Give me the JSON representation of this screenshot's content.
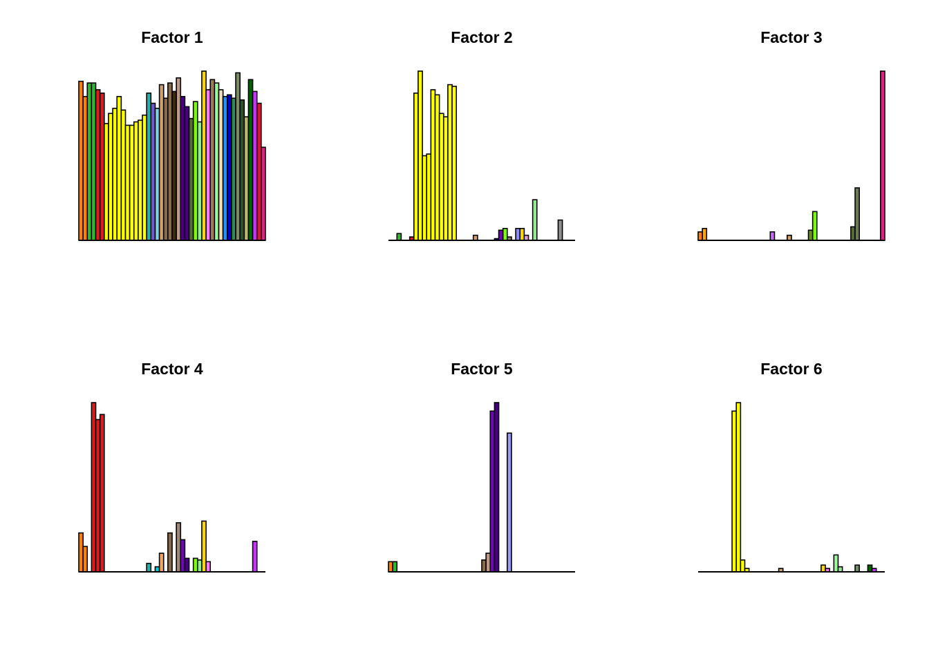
{
  "chart_data": [
    {
      "type": "bar",
      "title": "Factor 1",
      "xlabel": "",
      "ylabel": "",
      "axes": "none",
      "grid": false,
      "legend": "none",
      "ylim": [
        0,
        1
      ],
      "values": [
        0.94,
        0.85,
        0.93,
        0.93,
        0.89,
        0.87,
        0.69,
        0.75,
        0.78,
        0.85,
        0.77,
        0.68,
        0.68,
        0.7,
        0.71,
        0.74,
        0.87,
        0.81,
        0.78,
        0.92,
        0.84,
        0.93,
        0.88,
        0.96,
        0.85,
        0.79,
        0.72,
        0.82,
        0.7,
        1.0,
        0.89,
        0.95,
        0.93,
        0.89,
        0.85,
        0.86,
        0.84,
        0.99,
        0.83,
        0.73,
        0.95,
        0.88,
        0.81,
        0.55
      ],
      "colors": [
        "#FF7F00",
        "#FF7F00",
        "#2EB82E",
        "#2EB82E",
        "#E31A1C",
        "#E31A1C",
        "#FFFF00",
        "#FFFF00",
        "#FFFF00",
        "#FFFF00",
        "#FFFF00",
        "#FFFF00",
        "#FFFF00",
        "#FFFF00",
        "#FFFF00",
        "#FFFF00",
        "#20B2AA",
        "#6A5ACD",
        "#87CEEB",
        "#D2A06B",
        "#8B6A4A",
        "#8B6A4A",
        "#3E2A14",
        "#BC9A86",
        "#4B0082",
        "#4B0082",
        "#556B2F",
        "#7CFC00",
        "#8EF08E",
        "#FFD700",
        "#FF77FF",
        "#9B7B5A",
        "#98FB98",
        "#F5DEB3",
        "#1E90FF",
        "#0000CD",
        "#2E8B57",
        "#7B8B6A",
        "#2F4F2F",
        "#BDB76B",
        "#006400",
        "#CC33FF",
        "#DC143C",
        "#E0208A"
      ]
    },
    {
      "type": "bar",
      "title": "Factor 2",
      "xlabel": "",
      "ylabel": "",
      "axes": "none",
      "grid": false,
      "legend": "none",
      "ylim": [
        0,
        1
      ],
      "values": [
        0.0,
        0.0,
        0.04,
        0.0,
        0.0,
        0.02,
        0.87,
        1.0,
        0.5,
        0.51,
        0.89,
        0.86,
        0.75,
        0.73,
        0.92,
        0.91,
        0.0,
        0.0,
        0.0,
        0.0,
        0.03,
        0.0,
        0.0,
        0.0,
        0.0,
        0.01,
        0.06,
        0.07,
        0.02,
        0.0,
        0.07,
        0.07,
        0.03,
        0.0,
        0.24,
        0.0,
        0.0,
        0.0,
        0.0,
        0.0,
        0.12,
        0.0,
        0.0,
        0.0
      ],
      "colors": [
        "#FF7F00",
        "#FF7F00",
        "#2EB82E",
        "#2EB82E",
        "#E31A1C",
        "#E31A1C",
        "#FFFF00",
        "#FFFF00",
        "#FFFF00",
        "#FFFF00",
        "#FFFF00",
        "#FFFF00",
        "#FFFF00",
        "#FFFF00",
        "#FFFF00",
        "#FFFF00",
        "#20B2AA",
        "#6A5ACD",
        "#87CEEB",
        "#D2A06B",
        "#D2A06B",
        "#8B6A4A",
        "#3E2A14",
        "#BC9A86",
        "#4B0082",
        "#4B0082",
        "#6A0DAD",
        "#7CFC00",
        "#8B7B6A",
        "#FFD700",
        "#8C8CFF",
        "#FFD700",
        "#DDA0DD",
        "#F5DEB3",
        "#90EE90",
        "#0000CD",
        "#2E8B57",
        "#7B8B6A",
        "#2F4F2F",
        "#BDB76B",
        "#909090",
        "#CC33FF",
        "#DC143C",
        "#E0208A"
      ]
    },
    {
      "type": "bar",
      "title": "Factor 3",
      "xlabel": "",
      "ylabel": "",
      "axes": "none",
      "grid": false,
      "legend": "none",
      "ylim": [
        0,
        1
      ],
      "values": [
        0.05,
        0.07,
        0.0,
        0.0,
        0.0,
        0.0,
        0.0,
        0.0,
        0.0,
        0.0,
        0.0,
        0.0,
        0.0,
        0.0,
        0.0,
        0.0,
        0.0,
        0.05,
        0.0,
        0.0,
        0.0,
        0.03,
        0.0,
        0.0,
        0.0,
        0.0,
        0.06,
        0.17,
        0.0,
        0.0,
        0.0,
        0.0,
        0.0,
        0.0,
        0.0,
        0.0,
        0.08,
        0.31,
        0.0,
        0.0,
        0.0,
        0.0,
        0.0,
        1.0
      ],
      "colors": [
        "#FF7F00",
        "#FFA500",
        "#2EB82E",
        "#2EB82E",
        "#E31A1C",
        "#E31A1C",
        "#FFFF00",
        "#FFFF00",
        "#FFFF00",
        "#FFFF00",
        "#FFFF00",
        "#FFFF00",
        "#FFFF00",
        "#FFFF00",
        "#FFFF00",
        "#FFFF00",
        "#20B2AA",
        "#CC66FF",
        "#87CEEB",
        "#D2A06B",
        "#8B6A4A",
        "#D2A06B",
        "#3E2A14",
        "#BC9A86",
        "#4B0082",
        "#4B0082",
        "#6B8E23",
        "#7CFC00",
        "#8EF08E",
        "#FFD700",
        "#FF77FF",
        "#9B7B5A",
        "#98FB98",
        "#F5DEB3",
        "#1E90FF",
        "#0000CD",
        "#556B2F",
        "#6B7B5A",
        "#2F4F2F",
        "#BDB76B",
        "#006400",
        "#CC33FF",
        "#DC143C",
        "#E0208A"
      ]
    },
    {
      "type": "bar",
      "title": "Factor 4",
      "xlabel": "",
      "ylabel": "",
      "axes": "none",
      "grid": false,
      "legend": "none",
      "ylim": [
        0,
        1
      ],
      "values": [
        0.23,
        0.15,
        0.0,
        1.0,
        0.9,
        0.93,
        0.0,
        0.0,
        0.0,
        0.0,
        0.0,
        0.0,
        0.0,
        0.0,
        0.0,
        0.0,
        0.05,
        0.0,
        0.03,
        0.11,
        0.0,
        0.23,
        0.0,
        0.29,
        0.19,
        0.08,
        0.0,
        0.08,
        0.07,
        0.3,
        0.06,
        0.0,
        0.0,
        0.0,
        0.0,
        0.0,
        0.0,
        0.0,
        0.0,
        0.0,
        0.0,
        0.18,
        0.0,
        0.0
      ],
      "colors": [
        "#FF7F00",
        "#FF7F00",
        "#2EB82E",
        "#E31A1C",
        "#E31A1C",
        "#E31A1C",
        "#FFFF00",
        "#FFFF00",
        "#FFFF00",
        "#FFFF00",
        "#FFFF00",
        "#FFFF00",
        "#FFFF00",
        "#FFFF00",
        "#FFFF00",
        "#FFFF00",
        "#20B2AA",
        "#6A5ACD",
        "#00CED1",
        "#F4A460",
        "#8B6A4A",
        "#8B6A4A",
        "#3E2A14",
        "#A08878",
        "#6A0DAD",
        "#4B0082",
        "#556B2F",
        "#7CFC00",
        "#8EF08E",
        "#FFD700",
        "#FF77FF",
        "#9B7B5A",
        "#98FB98",
        "#F5DEB3",
        "#1E90FF",
        "#0000CD",
        "#2E8B57",
        "#7B8B6A",
        "#2F4F2F",
        "#BDB76B",
        "#006400",
        "#CC33FF",
        "#DC143C",
        "#E0208A"
      ]
    },
    {
      "type": "bar",
      "title": "Factor 5",
      "xlabel": "",
      "ylabel": "",
      "axes": "none",
      "grid": false,
      "legend": "none",
      "ylim": [
        0,
        1
      ],
      "values": [
        0.06,
        0.06,
        0.0,
        0.0,
        0.0,
        0.0,
        0.0,
        0.0,
        0.0,
        0.0,
        0.0,
        0.0,
        0.0,
        0.0,
        0.0,
        0.0,
        0.0,
        0.0,
        0.0,
        0.0,
        0.0,
        0.0,
        0.07,
        0.11,
        0.95,
        1.0,
        0.0,
        0.0,
        0.82,
        0.0,
        0.0,
        0.0,
        0.0,
        0.0,
        0.0,
        0.0,
        0.0,
        0.0,
        0.0,
        0.0,
        0.0,
        0.0,
        0.0,
        0.0
      ],
      "colors": [
        "#FF7F00",
        "#2EB82E",
        "#2EB82E",
        "#2EB82E",
        "#E31A1C",
        "#E31A1C",
        "#FFFF00",
        "#FFFF00",
        "#FFFF00",
        "#FFFF00",
        "#FFFF00",
        "#FFFF00",
        "#FFFF00",
        "#FFFF00",
        "#FFFF00",
        "#FFFF00",
        "#20B2AA",
        "#6A5ACD",
        "#87CEEB",
        "#D2A06B",
        "#8B6A4A",
        "#8B6A4A",
        "#8B6A4A",
        "#BC9A86",
        "#6A0DAD",
        "#4B0082",
        "#556B2F",
        "#7CFC00",
        "#9999EE",
        "#FFD700",
        "#FF77FF",
        "#9B7B5A",
        "#98FB98",
        "#F5DEB3",
        "#1E90FF",
        "#0000CD",
        "#2E8B57",
        "#7B8B6A",
        "#2F4F2F",
        "#BDB76B",
        "#006400",
        "#CC33FF",
        "#DC143C",
        "#E0208A"
      ]
    },
    {
      "type": "bar",
      "title": "Factor 6",
      "xlabel": "",
      "ylabel": "",
      "axes": "none",
      "grid": false,
      "legend": "none",
      "ylim": [
        0,
        1
      ],
      "values": [
        0.0,
        0.0,
        0.0,
        0.0,
        0.0,
        0.0,
        0.0,
        0.0,
        0.95,
        1.0,
        0.07,
        0.02,
        0.0,
        0.0,
        0.0,
        0.0,
        0.0,
        0.0,
        0.0,
        0.02,
        0.0,
        0.0,
        0.0,
        0.0,
        0.0,
        0.0,
        0.0,
        0.0,
        0.0,
        0.04,
        0.02,
        0.0,
        0.1,
        0.03,
        0.0,
        0.0,
        0.0,
        0.04,
        0.0,
        0.0,
        0.04,
        0.02,
        0.0,
        0.0
      ],
      "colors": [
        "#FF7F00",
        "#FF7F00",
        "#2EB82E",
        "#2EB82E",
        "#E31A1C",
        "#E31A1C",
        "#FFFF00",
        "#FFFF00",
        "#FFFF00",
        "#FFFF00",
        "#FFFF00",
        "#FFFF00",
        "#FFFF00",
        "#FFFF00",
        "#FFFF00",
        "#FFFF00",
        "#20B2AA",
        "#6A5ACD",
        "#87CEEB",
        "#D2A06B",
        "#8B6A4A",
        "#8B6A4A",
        "#3E2A14",
        "#BC9A86",
        "#4B0082",
        "#4B0082",
        "#556B2F",
        "#7CFC00",
        "#8EF08E",
        "#FFD700",
        "#FF77FF",
        "#9B7B5A",
        "#98FB98",
        "#8EF08E",
        "#1E90FF",
        "#0000CD",
        "#2E8B57",
        "#7B8B6A",
        "#2F4F2F",
        "#BDB76B",
        "#006400",
        "#CC33FF",
        "#DC143C",
        "#E0208A"
      ]
    }
  ]
}
